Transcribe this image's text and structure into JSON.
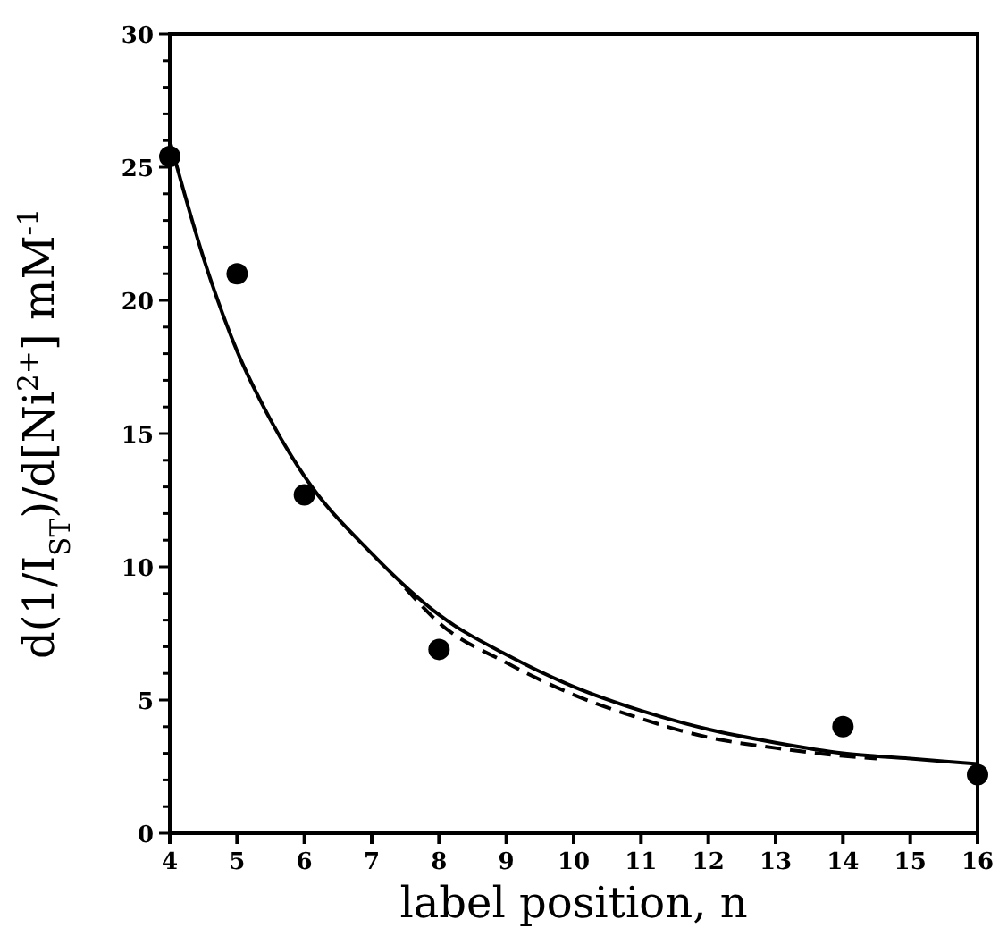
{
  "chart_data": {
    "type": "scatter",
    "xlabel": "label position, n",
    "ylabel": "d(1/I$_{ST}$)/d[Ni$^{2+}$]  mM$^{-1}$",
    "xlim": [
      4,
      16
    ],
    "xticks": [
      4,
      5,
      6,
      7,
      8,
      9,
      10,
      11,
      12,
      13,
      14,
      15,
      16
    ],
    "ylim": [
      0,
      30
    ],
    "yticks": [
      0,
      {
        "value": 1,
        "label": null
      },
      {
        "value": 2,
        "label": null
      },
      {
        "value": 3,
        "label": null
      },
      {
        "value": 4,
        "label": null
      },
      5,
      {
        "value": 6,
        "label": null
      },
      {
        "value": 7,
        "label": null
      },
      {
        "value": 8,
        "label": null
      },
      {
        "value": 9,
        "label": null
      },
      10,
      {
        "value": 11,
        "label": null
      },
      {
        "value": 12,
        "label": null
      },
      {
        "value": 13,
        "label": null
      },
      {
        "value": 14,
        "label": null
      },
      15,
      {
        "value": 16,
        "label": null
      },
      {
        "value": 17,
        "label": null
      },
      {
        "value": 18,
        "label": null
      },
      {
        "value": 19,
        "label": null
      },
      20,
      {
        "value": 21,
        "label": null
      },
      {
        "value": 22,
        "label": null
      },
      {
        "value": 23,
        "label": null
      },
      {
        "value": 24,
        "label": null
      },
      25,
      {
        "value": 26,
        "label": null
      },
      {
        "value": 27,
        "label": null
      },
      {
        "value": 28,
        "label": null
      },
      {
        "value": 29,
        "label": null
      },
      30
    ],
    "grid": false,
    "series": [
      {
        "color": "#000000",
        "marker": "circle",
        "x": [
          4,
          5,
          6,
          8,
          14,
          16
        ],
        "values": [
          25.4,
          21.0,
          12.7,
          6.9,
          4.0,
          2.2
        ]
      },
      {
        "type": "line",
        "color": "#000000",
        "line_style": "solid",
        "x": [
          4,
          4.5,
          5,
          5.5,
          6,
          7,
          8,
          9,
          10,
          11,
          12,
          13,
          14,
          15,
          16
        ],
        "values": [
          26.0,
          21.6,
          18.1,
          15.5,
          13.4,
          10.5,
          8.2,
          6.7,
          5.5,
          4.6,
          3.9,
          3.4,
          3.0,
          2.8,
          2.6
        ]
      },
      {
        "type": "line",
        "color": "#000000",
        "line_style": "dashed",
        "x": [
          7.5,
          8,
          9,
          10,
          11,
          12,
          13,
          14,
          14.5
        ],
        "values": [
          9.2,
          7.9,
          6.4,
          5.2,
          4.3,
          3.6,
          3.2,
          2.9,
          2.8
        ]
      }
    ]
  }
}
